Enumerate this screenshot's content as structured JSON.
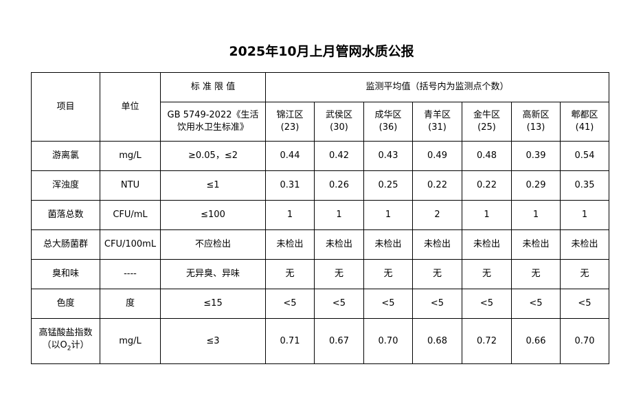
{
  "title": "2025年10月上月管网水质公报",
  "header": {
    "item": "项目",
    "unit": "单位",
    "standard": "标 准 限 值",
    "standard_ref": "GB 5749-2022《生活饮用水卫生标准》",
    "monitor": "监测平均值（括号内为监测点个数）",
    "districts": [
      {
        "name": "锦江区",
        "count": "(23)"
      },
      {
        "name": "武侯区",
        "count": "(30)"
      },
      {
        "name": "成华区",
        "count": "(36)"
      },
      {
        "name": "青羊区",
        "count": "(31)"
      },
      {
        "name": "金牛区",
        "count": "(25)"
      },
      {
        "name": "高新区",
        "count": "(13)"
      },
      {
        "name": "郫都区",
        "count": "(41)"
      }
    ]
  },
  "rows": [
    {
      "item": "游离氯",
      "unit": "mg/L",
      "limit": "≥0.05，≤2",
      "values": [
        "0.44",
        "0.42",
        "0.43",
        "0.49",
        "0.48",
        "0.39",
        "0.54"
      ]
    },
    {
      "item": "浑浊度",
      "unit": "NTU",
      "limit": "≤1",
      "values": [
        "0.31",
        "0.26",
        "0.25",
        "0.22",
        "0.22",
        "0.29",
        "0.35"
      ]
    },
    {
      "item": "菌落总数",
      "unit": "CFU/mL",
      "limit": "≤100",
      "values": [
        "1",
        "1",
        "1",
        "2",
        "1",
        "1",
        "1"
      ]
    },
    {
      "item": "总大肠菌群",
      "unit": "CFU/100mL",
      "limit": "不应检出",
      "values": [
        "未检出",
        "未检出",
        "未检出",
        "未检出",
        "未检出",
        "未检出",
        "未检出"
      ]
    },
    {
      "item": "臭和味",
      "unit": "----",
      "limit": "无异臭、异味",
      "values": [
        "无",
        "无",
        "无",
        "无",
        "无",
        "无",
        "无"
      ]
    },
    {
      "item": "色度",
      "unit": "度",
      "limit": "≤15",
      "values": [
        "<5",
        "<5",
        "<5",
        "<5",
        "<5",
        "<5",
        "<5"
      ]
    },
    {
      "item": "高锰酸盐指数",
      "item_note_pre": "（以O",
      "item_note_sub": "2",
      "item_note_post": "计）",
      "unit": "mg/L",
      "limit": "≤3",
      "values": [
        "0.71",
        "0.67",
        "0.70",
        "0.68",
        "0.72",
        "0.66",
        "0.70"
      ]
    }
  ]
}
